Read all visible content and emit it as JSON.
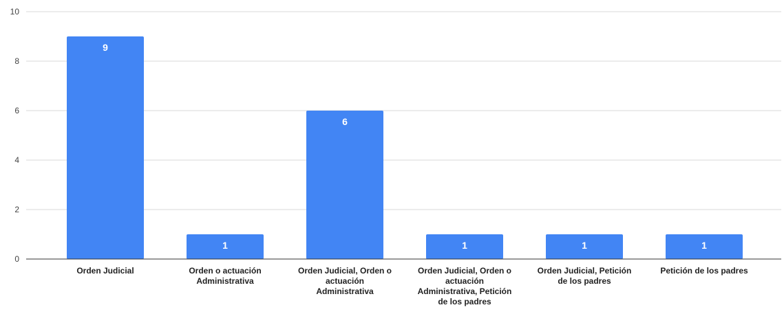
{
  "chart_data": {
    "type": "bar",
    "categories": [
      "Orden Judicial",
      "Orden o actuación Administrativa",
      "Orden Judicial, Orden o actuación Administrativa",
      "Orden Judicial, Orden o actuación Administrativa, Petición de los padres",
      "Orden Judicial, Petición de los padres",
      "Petición de los padres"
    ],
    "category_lines": [
      [
        "Orden Judicial"
      ],
      [
        "Orden o actuación",
        "Administrativa"
      ],
      [
        "Orden Judicial, Orden o",
        "actuación",
        "Administrativa"
      ],
      [
        "Orden Judicial, Orden o",
        "actuación",
        "Administrativa, Petición",
        "de los padres"
      ],
      [
        "Orden Judicial, Petición",
        "de los padres"
      ],
      [
        "Petición de los padres"
      ]
    ],
    "values": [
      9,
      1,
      6,
      1,
      1,
      1
    ],
    "data_labels": [
      "9",
      "1",
      "6",
      "1",
      "1",
      "1"
    ],
    "y_ticks": [
      0,
      2,
      4,
      6,
      8,
      10
    ],
    "ylim": [
      0,
      10
    ],
    "grid": true,
    "bar_color": "#4285f4",
    "grid_color": "#d9d9d9",
    "axis_color": "#333333"
  }
}
